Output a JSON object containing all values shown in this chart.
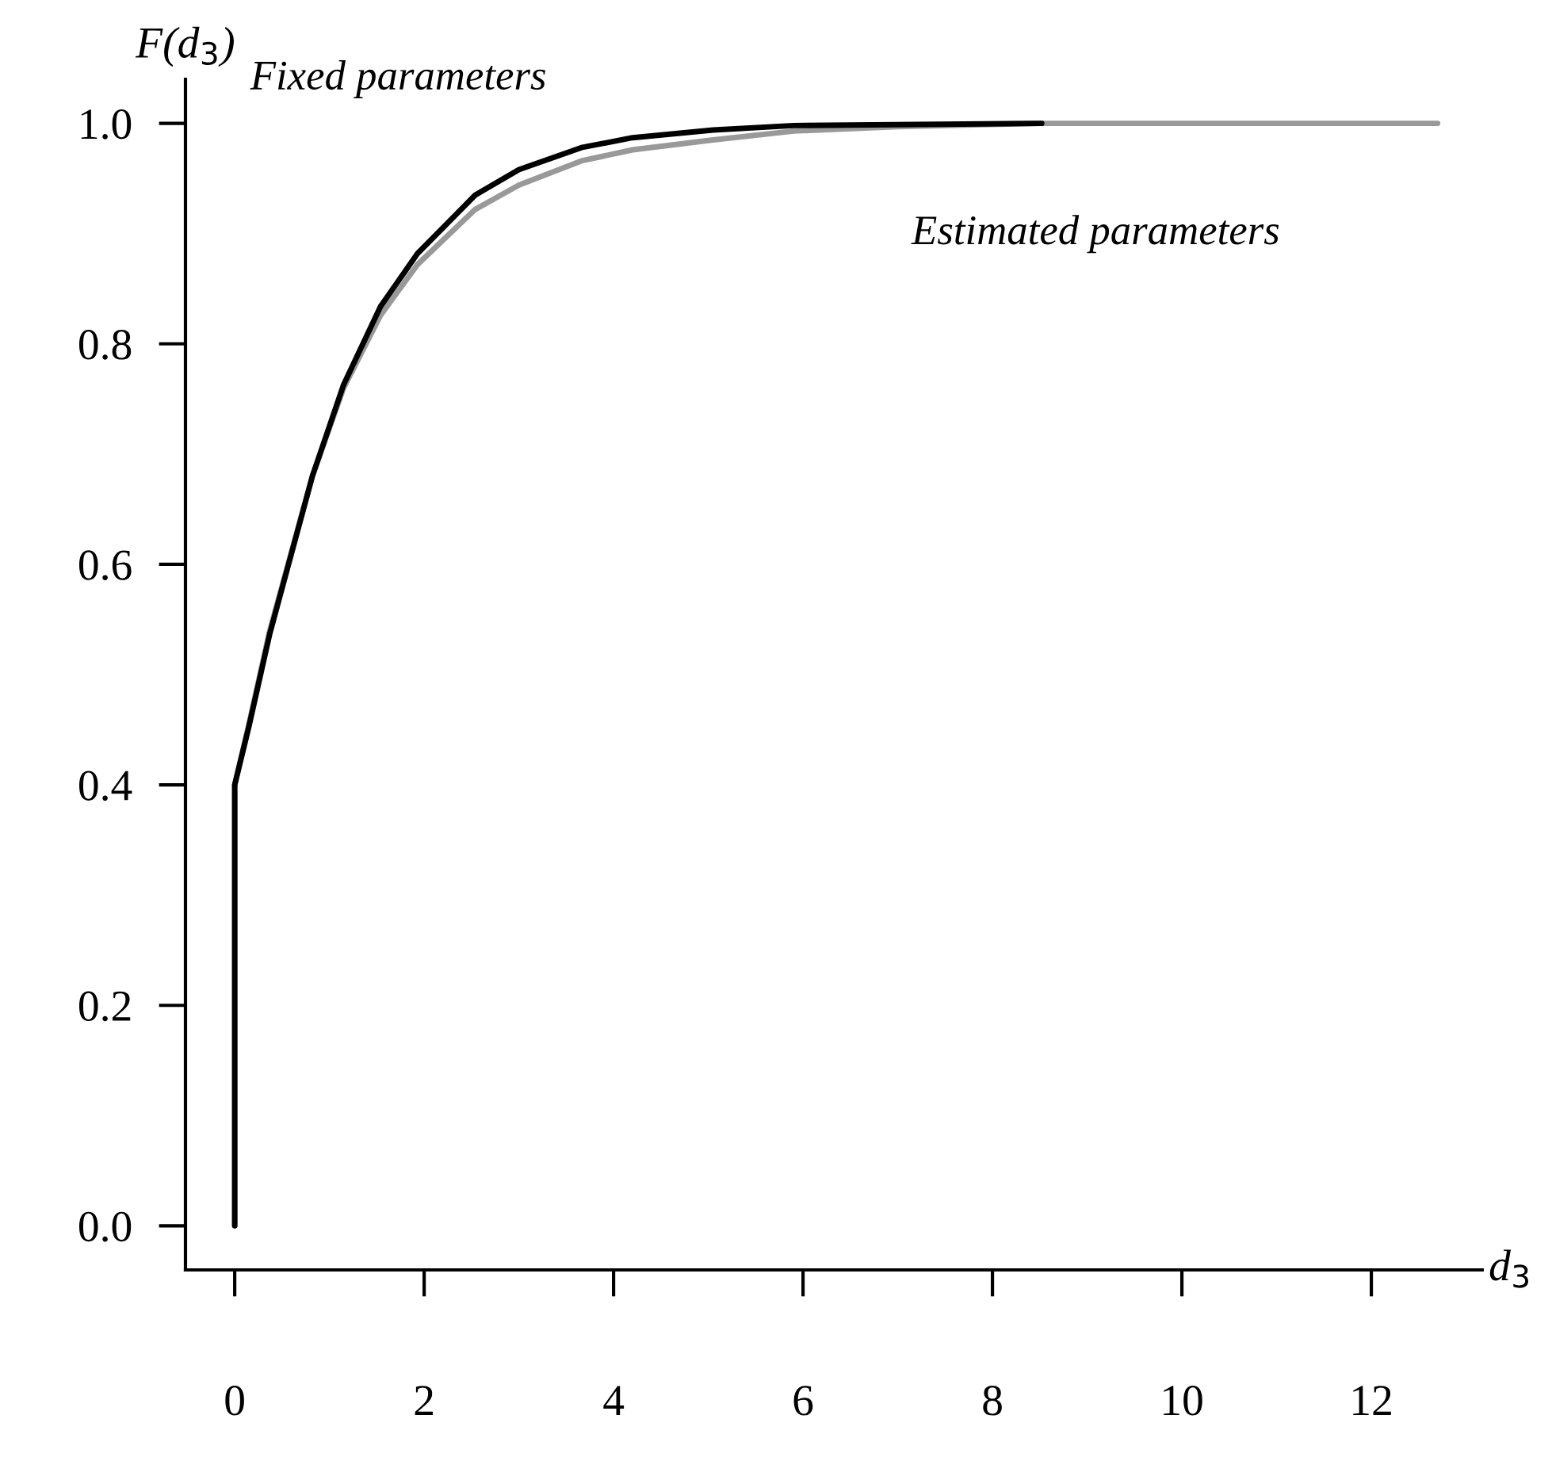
{
  "chart_data": {
    "type": "line",
    "xlabel": "d$_{3}$",
    "ylabel": "F(d$_{3}$)",
    "xlim": [
      -0.52,
      13.17
    ],
    "ylim": [
      -0.04,
      1.04
    ],
    "xticks": [
      0,
      2,
      4,
      6,
      8,
      10,
      12
    ],
    "yticks": [
      {
        "value": 0,
        "label": "0.0"
      },
      0.2,
      0.4,
      0.6,
      0.8,
      {
        "value": 1,
        "label": "1.0"
      }
    ],
    "grid": false,
    "legend": false,
    "marker": "none",
    "line_style": "solid",
    "series": [
      {
        "name": "Estimated parameters",
        "color": "#999999",
        "x": [
          0,
          0,
          0.15,
          0.37,
          0.82,
          1.15,
          1.54,
          1.93,
          2.54,
          3.0,
          3.66,
          4.2,
          5.05,
          5.9,
          7.0,
          8.5,
          12.7
        ],
        "values": [
          0,
          0.4,
          0.455,
          0.54,
          0.68,
          0.76,
          0.826,
          0.872,
          0.922,
          0.944,
          0.966,
          0.976,
          0.985,
          0.993,
          0.997,
          1.0,
          1.0
        ]
      },
      {
        "name": "Fixed parameters",
        "color": "#000000",
        "x": [
          0,
          0,
          0.15,
          0.37,
          0.82,
          1.15,
          1.54,
          1.93,
          2.54,
          3.0,
          3.66,
          4.2,
          5.05,
          5.9,
          8.52
        ],
        "values": [
          0,
          0.4,
          0.453,
          0.537,
          0.68,
          0.763,
          0.834,
          0.882,
          0.935,
          0.958,
          0.978,
          0.987,
          0.994,
          0.998,
          1.0
        ]
      }
    ]
  }
}
